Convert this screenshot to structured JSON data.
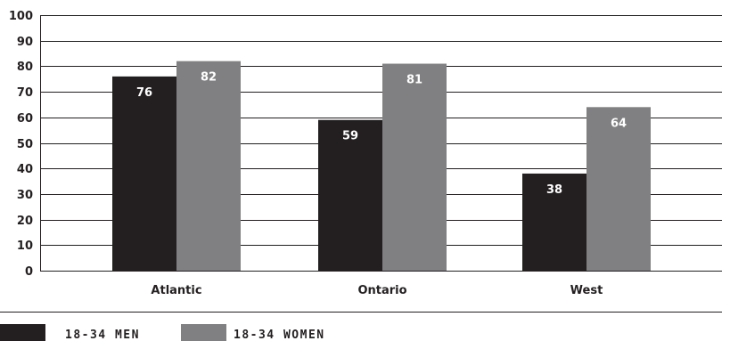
{
  "chart_data": {
    "type": "bar",
    "categories": [
      "Atlantic",
      "Ontario",
      "West"
    ],
    "series": [
      {
        "name": "18-34 MEN",
        "values": [
          76,
          59,
          38
        ],
        "color": "#231f20"
      },
      {
        "name": "18-34 WOMEN",
        "values": [
          82,
          81,
          64
        ],
        "color": "#808082"
      }
    ],
    "ylim": [
      0,
      100
    ],
    "yticks": [
      0,
      10,
      20,
      30,
      40,
      50,
      60,
      70,
      80,
      90,
      100
    ],
    "grid": true,
    "legend_position": "bottom-left",
    "title": "",
    "xlabel": "",
    "ylabel": "",
    "colors": {
      "gridline": "#231f20",
      "text": "#231f20",
      "data_label": "#ffffff"
    }
  }
}
